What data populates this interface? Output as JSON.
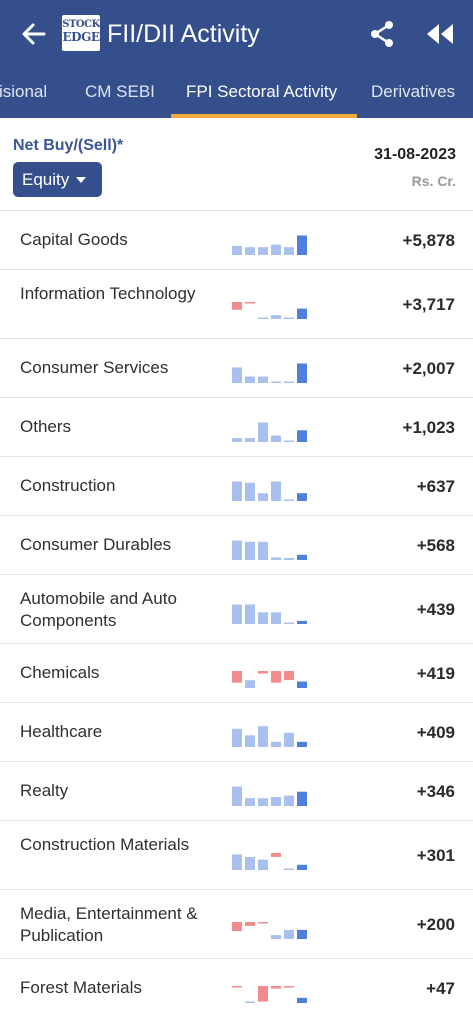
{
  "header": {
    "title": "FII/DII Activity",
    "logo_line1": "STOCK",
    "logo_line2": "EDGE"
  },
  "tabs": [
    {
      "label": "Provisional",
      "active": false
    },
    {
      "label": "CM SEBI",
      "active": false
    },
    {
      "label": "FPI Sectoral Activity",
      "active": true
    },
    {
      "label": "Derivatives",
      "active": false
    }
  ],
  "subheader": {
    "net_label": "Net Buy/(Sell)*",
    "filter_label": "Equity",
    "date": "31-08-2023",
    "unit": "Rs. Cr."
  },
  "colors": {
    "primary": "#344f8c",
    "accent": "#f0a93b",
    "bar_positive": "#a9c0ee",
    "bar_positive_latest": "#4f7fdc",
    "bar_negative": "#f28b8b"
  },
  "sectors": [
    {
      "name": "Capital Goods",
      "value": "+5,878",
      "trend": [
        0.35,
        0.3,
        0.3,
        0.4,
        0.3,
        0.75
      ]
    },
    {
      "name": "Information Technology",
      "value": "+3,717",
      "trend": [
        -0.3,
        -0.05,
        0.02,
        0.15,
        0.05,
        0.4
      ]
    },
    {
      "name": "Consumer Services",
      "value": "+2,007",
      "trend": [
        0.6,
        0.25,
        0.25,
        0.05,
        0.02,
        0.75
      ]
    },
    {
      "name": "Others",
      "value": "+1,023",
      "trend": [
        0.15,
        0.15,
        0.75,
        0.25,
        0.05,
        0.45
      ]
    },
    {
      "name": "Construction",
      "value": "+637",
      "trend": [
        0.75,
        0.7,
        0.3,
        0.75,
        0.03,
        0.3
      ]
    },
    {
      "name": "Consumer Durables",
      "value": "+568",
      "trend": [
        0.75,
        0.7,
        0.7,
        0.1,
        0.08,
        0.2
      ]
    },
    {
      "name": "Automobile and Auto Components",
      "value": "+439",
      "trend": [
        0.75,
        0.75,
        0.45,
        0.45,
        0.02,
        0.12
      ]
    },
    {
      "name": "Chemicals",
      "value": "+419",
      "trend": [
        -0.45,
        0.3,
        -0.1,
        -0.45,
        -0.35,
        0.25
      ]
    },
    {
      "name": "Healthcare",
      "value": "+409",
      "trend": [
        0.7,
        0.45,
        0.8,
        0.2,
        0.55,
        0.2
      ]
    },
    {
      "name": "Realty",
      "value": "+346",
      "trend": [
        0.75,
        0.3,
        0.3,
        0.35,
        0.4,
        0.55
      ]
    },
    {
      "name": "Construction Materials",
      "value": "+301",
      "trend": [
        0.6,
        0.5,
        0.4,
        -0.15,
        0.05,
        0.2
      ]
    },
    {
      "name": "Media, Entertainment & Publication",
      "value": "+200",
      "trend": [
        -0.35,
        -0.15,
        -0.05,
        0.15,
        0.35,
        0.35
      ]
    },
    {
      "name": "Forest Materials",
      "value": "+47",
      "trend": [
        -0.05,
        0.0,
        -0.6,
        -0.1,
        -0.05,
        0.2
      ]
    }
  ]
}
